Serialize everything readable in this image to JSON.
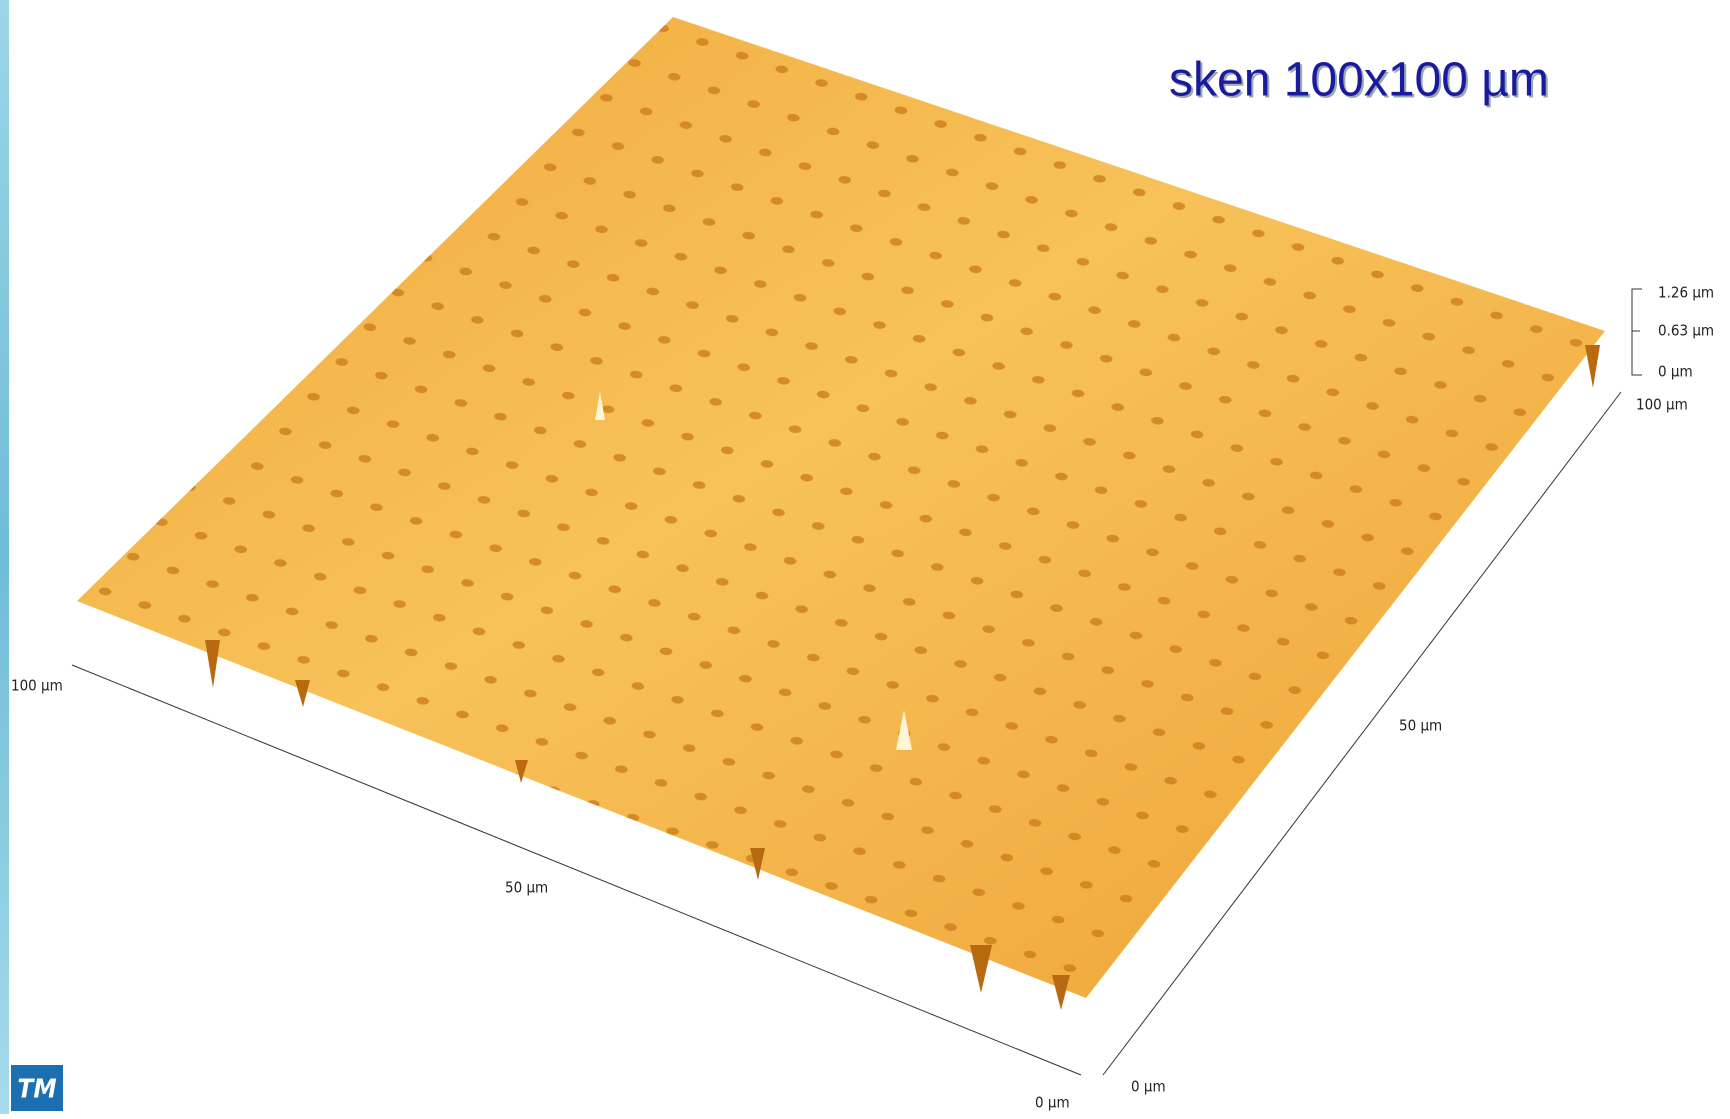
{
  "title": "sken 100x100 µm",
  "x_axis": {
    "labels": [
      "100 µm",
      "50 µm",
      "0 µm"
    ]
  },
  "y_axis": {
    "labels": [
      "0 µm",
      "50 µm",
      "100 µm"
    ]
  },
  "z_axis": {
    "labels": [
      "1.26 µm",
      "0.63 µm",
      "0 µm"
    ]
  },
  "logo": "TM"
}
